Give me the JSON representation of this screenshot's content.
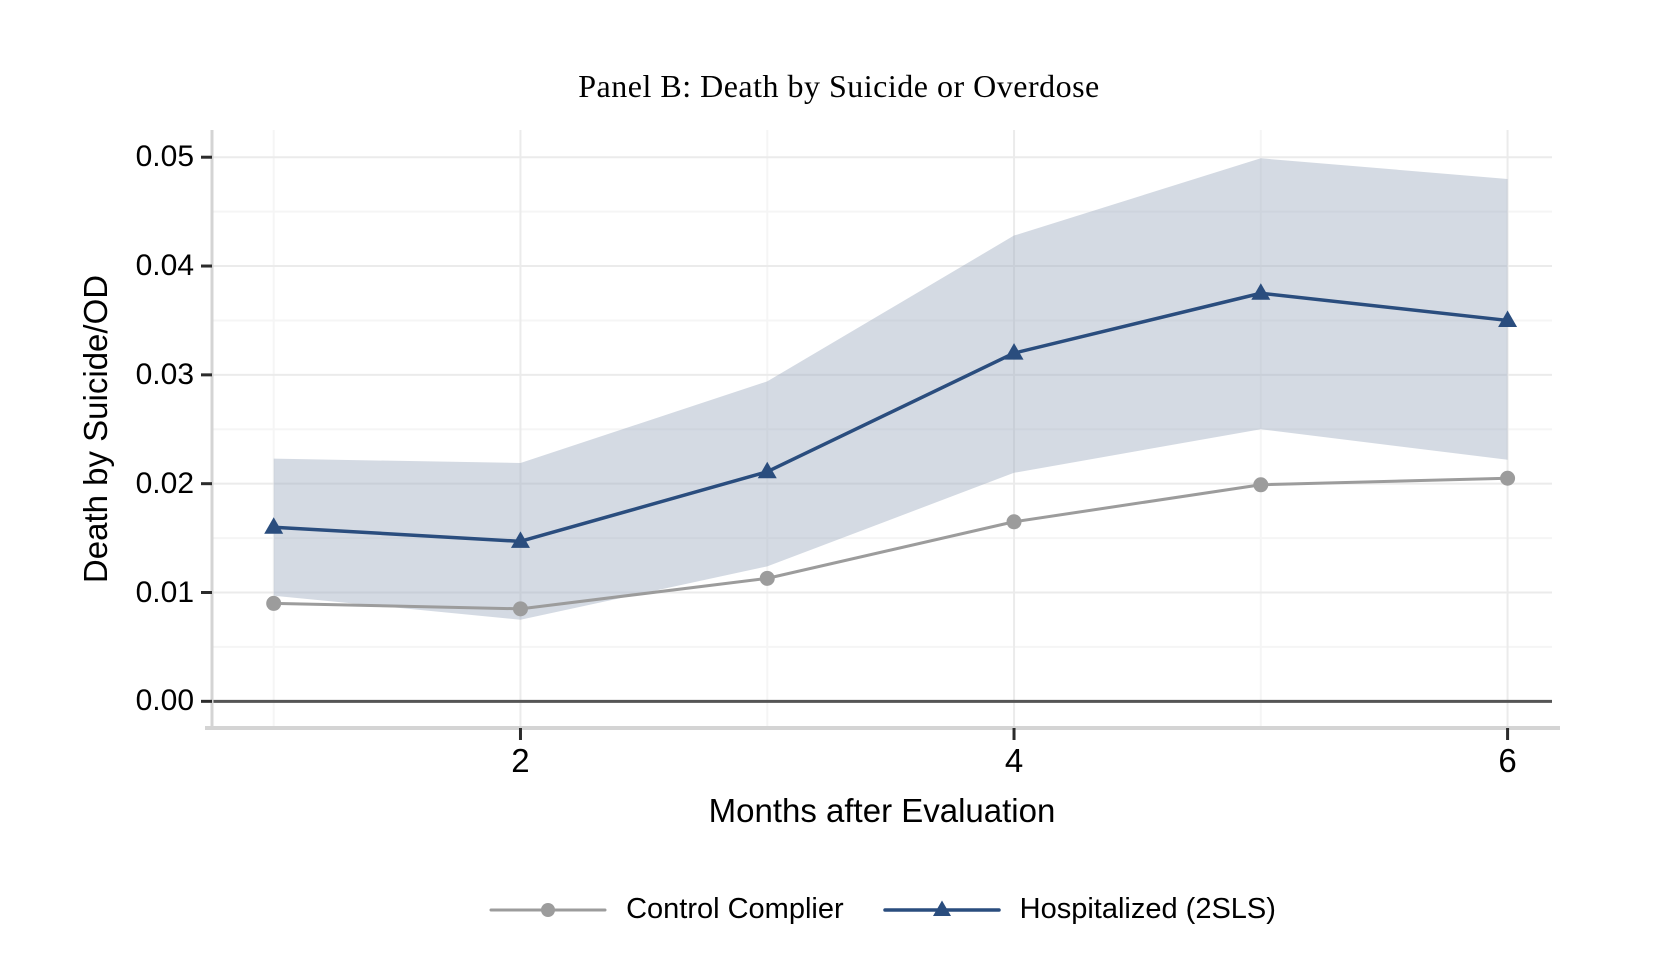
{
  "figure": {
    "background": "#ffffff"
  },
  "chart_data": {
    "type": "line",
    "title": "Panel B: Death by Suicide or Overdose",
    "xlabel": "Months after Evaluation",
    "ylabel": "Death by Suicide/OD",
    "x": [
      1,
      2,
      3,
      4,
      5,
      6
    ],
    "series": [
      {
        "name": "Control Complier",
        "marker": "circle",
        "color": "#9c9c9c",
        "line_width": 3,
        "values": [
          0.009,
          0.0085,
          0.0113,
          0.0165,
          0.0199,
          0.0205
        ]
      },
      {
        "name": "Hospitalized (2SLS)",
        "marker": "triangle",
        "color": "#2a4d7e",
        "line_width": 3.5,
        "values": [
          0.016,
          0.0147,
          0.0211,
          0.032,
          0.0375,
          0.035
        ]
      }
    ],
    "confidence_band": {
      "applies_to": "Hospitalized (2SLS)",
      "color": "rgba(160,173,193,0.45)",
      "upper": [
        0.0223,
        0.0219,
        0.0294,
        0.0428,
        0.0499,
        0.048
      ],
      "lower": [
        0.0097,
        0.0075,
        0.0124,
        0.021,
        0.025,
        0.0222
      ]
    },
    "zero_line": 0,
    "xlim": [
      0.75,
      6.18
    ],
    "ylim": [
      -0.00245,
      0.0525
    ],
    "x_ticks": {
      "values": [
        2,
        4,
        6
      ],
      "labels": [
        "2",
        "4",
        "6"
      ],
      "minor_values": [
        1,
        3,
        5
      ]
    },
    "y_ticks": {
      "values": [
        0,
        0.01,
        0.02,
        0.03,
        0.04,
        0.05
      ],
      "labels": [
        "0.00",
        "0.01",
        "0.02",
        "0.03",
        "0.04",
        "0.05"
      ],
      "minor_values": [
        0.005,
        0.015,
        0.025,
        0.035,
        0.045
      ]
    },
    "grid": "on",
    "legend_position": "bottom",
    "style": {
      "grid_major": "#ebebeb",
      "grid_minor": "#f5f5f5",
      "zero_line": "#555555",
      "axis_line": "#d4d4d4",
      "tick_mark": "#2b2b2b",
      "text": "#000000"
    }
  }
}
